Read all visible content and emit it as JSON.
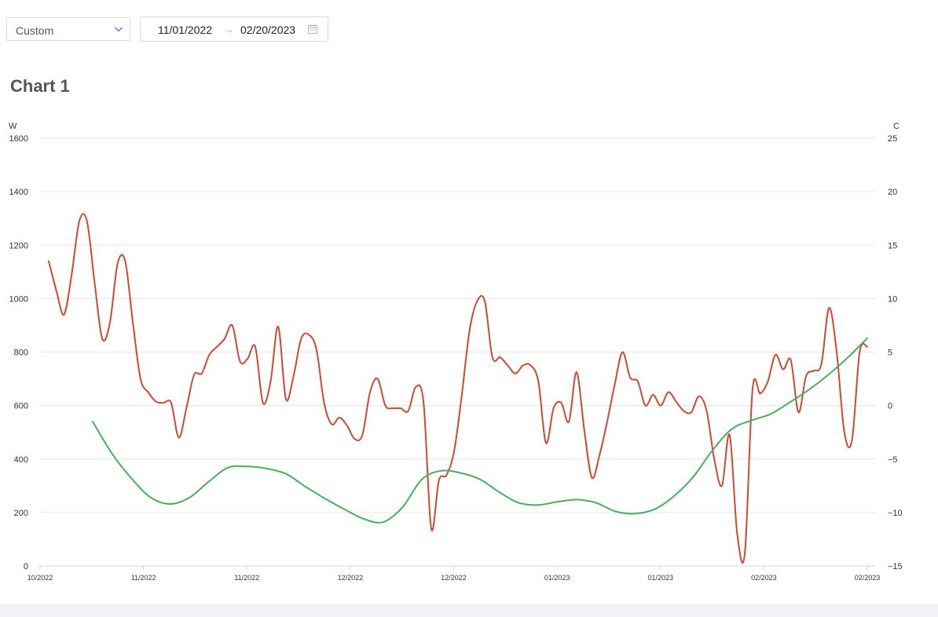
{
  "filter": {
    "preset": "Custom",
    "start_date": "11/01/2022",
    "end_date": "02/20/2023",
    "arrow": "→"
  },
  "chart_data": {
    "type": "line",
    "title": "Chart 1",
    "y_left_label": "W",
    "y_right_label": "C",
    "y_left_range": [
      0,
      1600
    ],
    "y_right_range": [
      -15,
      25
    ],
    "y_left_ticks": [
      "0",
      "200",
      "400",
      "600",
      "800",
      "1000",
      "1200",
      "1400",
      "1600"
    ],
    "y_right_ticks": [
      "−15",
      "−10",
      "−5",
      "0",
      "5",
      "10",
      "15",
      "20",
      "25"
    ],
    "x_tick_labels": [
      "10/2022",
      "11/2022",
      "11/2022",
      "12/2022",
      "12/2022",
      "01/2023",
      "01/2023",
      "02/2023",
      "02/2023"
    ],
    "grid": true,
    "series": [
      {
        "color": "#cc4a32",
        "axis": "left",
        "values": [
          1140,
          1030,
          940,
          1090,
          1290,
          1290,
          1060,
          850,
          910,
          1130,
          1140,
          910,
          700,
          650,
          615,
          610,
          610,
          480,
          590,
          715,
          720,
          790,
          820,
          850,
          900,
          765,
          775,
          820,
          610,
          690,
          895,
          625,
          710,
          850,
          865,
          810,
          610,
          530,
          555,
          525,
          475,
          490,
          650,
          700,
          600,
          590,
          590,
          580,
          670,
          610,
          140,
          320,
          340,
          430,
          640,
          880,
          990,
          990,
          780,
          780,
          750,
          720,
          750,
          750,
          690,
          460,
          590,
          610,
          540,
          725,
          510,
          330,
          415,
          540,
          680,
          800,
          705,
          690,
          600,
          640,
          600,
          650,
          615,
          580,
          575,
          635,
          580,
          400,
          300,
          490,
          120,
          50,
          660,
          645,
          690,
          790,
          735,
          770,
          575,
          710,
          730,
          755,
          965,
          800,
          500,
          470,
          800,
          820
        ]
      },
      {
        "color": "#49ae5b",
        "axis": "right",
        "values": [
          -1.5,
          -4.5,
          -6.8,
          -8.6,
          -9.2,
          -8.6,
          -7.1,
          -5.8,
          -5.7,
          -5.9,
          -6.4,
          -7.6,
          -8.7,
          -9.7,
          -10.6,
          -10.9,
          -9.5,
          -6.9,
          -6.1,
          -6.3,
          -6.9,
          -8.1,
          -9.1,
          -9.3,
          -9.0,
          -8.8,
          -9.1,
          -9.9,
          -10.1,
          -9.7,
          -8.5,
          -6.7,
          -4.2,
          -2.2,
          -1.4,
          -0.8,
          0.3,
          1.5,
          2.9,
          4.5,
          6.3
        ]
      }
    ]
  }
}
